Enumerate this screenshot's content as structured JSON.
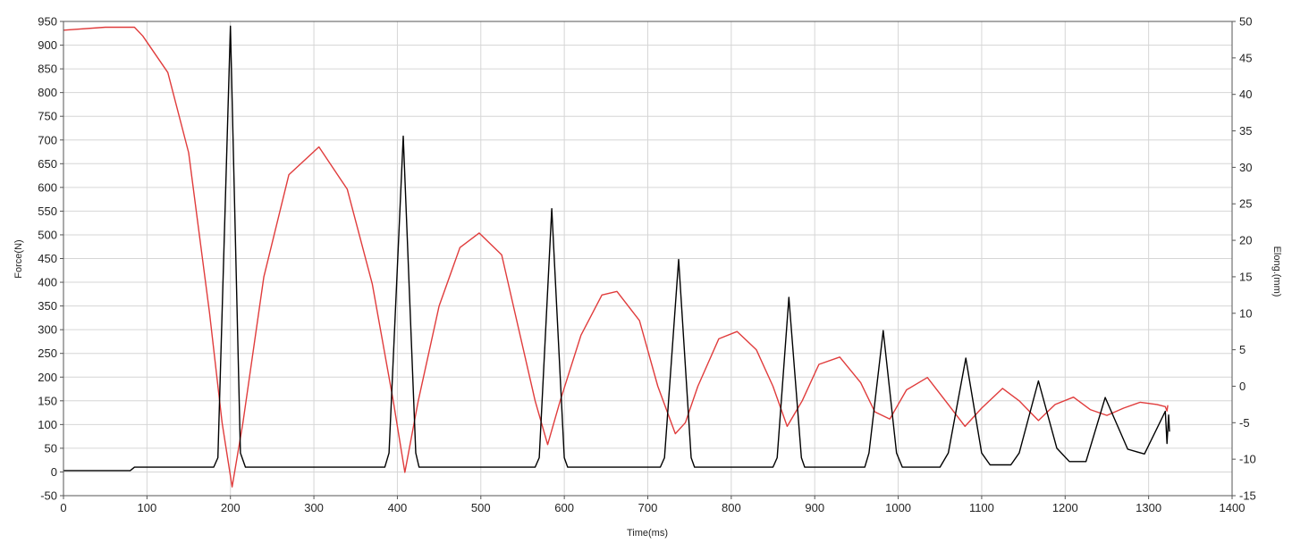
{
  "chart_data": {
    "type": "line",
    "xlabel": "Time(ms)",
    "ylabel": "Force(N)",
    "y2label": "Elong.(mm)",
    "xlim": [
      0,
      1400
    ],
    "ylim": [
      -50,
      950
    ],
    "y2lim": [
      -15,
      50
    ],
    "grid": true,
    "x_ticks": [
      0,
      100,
      200,
      300,
      400,
      500,
      600,
      700,
      800,
      900,
      1000,
      1100,
      1200,
      1300,
      1400
    ],
    "y_ticks": [
      -50,
      0,
      50,
      100,
      150,
      200,
      250,
      300,
      350,
      400,
      450,
      500,
      550,
      600,
      650,
      700,
      750,
      800,
      850,
      900,
      950
    ],
    "y2_ticks": [
      -15,
      -10,
      -5,
      0,
      5,
      10,
      15,
      20,
      25,
      30,
      35,
      40,
      45,
      50
    ],
    "series": [
      {
        "axis": "left",
        "color": "#000000",
        "x": [
          0,
          80,
          85,
          120,
          180,
          185,
          200,
          212,
          218,
          222,
          385,
          390,
          407,
          422,
          426,
          565,
          570,
          585,
          600,
          604,
          715,
          720,
          737,
          752,
          756,
          850,
          855,
          869,
          884,
          888,
          960,
          965,
          982,
          998,
          1005,
          1050,
          1060,
          1081,
          1100,
          1110,
          1135,
          1145,
          1168,
          1190,
          1205,
          1225,
          1248,
          1275,
          1295,
          1320,
          1322,
          1324,
          1325
        ],
        "y": [
          3,
          3,
          10,
          10,
          10,
          30,
          940,
          40,
          10,
          10,
          10,
          40,
          708,
          40,
          10,
          10,
          30,
          555,
          30,
          10,
          10,
          30,
          448,
          30,
          10,
          10,
          30,
          368,
          30,
          10,
          10,
          40,
          298,
          40,
          10,
          10,
          40,
          240,
          40,
          15,
          15,
          40,
          192,
          50,
          22,
          22,
          157,
          48,
          38,
          128,
          60,
          120,
          85
        ]
      },
      {
        "axis": "right",
        "color": "#e03c3c",
        "x": [
          0,
          50,
          85,
          95,
          125,
          150,
          175,
          190,
          202,
          215,
          240,
          270,
          306,
          340,
          370,
          395,
          409,
          425,
          450,
          475,
          498,
          525,
          545,
          565,
          580,
          595,
          620,
          645,
          663,
          690,
          712,
          733,
          745,
          760,
          785,
          807,
          830,
          850,
          867,
          885,
          905,
          930,
          955,
          972,
          990,
          1010,
          1035,
          1060,
          1080,
          1100,
          1125,
          1145,
          1168,
          1188,
          1210,
          1230,
          1250,
          1270,
          1290,
          1310,
          1320,
          1322,
          1323
        ],
        "y": [
          48.8,
          49.2,
          49.2,
          48.0,
          43.0,
          32.0,
          10.0,
          -5.0,
          -13.8,
          -5.0,
          15.0,
          29.0,
          32.8,
          27.0,
          14.0,
          -2.0,
          -11.8,
          -2.0,
          11.0,
          19.0,
          21.0,
          18.0,
          8.0,
          -2.0,
          -8.0,
          -2.0,
          7.0,
          12.5,
          13.0,
          9.0,
          0.0,
          -6.5,
          -5.0,
          0.0,
          6.5,
          7.5,
          5.0,
          0.0,
          -5.5,
          -2.0,
          3.0,
          4.0,
          0.5,
          -3.5,
          -4.5,
          -0.5,
          1.2,
          -2.5,
          -5.5,
          -3.0,
          -0.3,
          -2.0,
          -4.7,
          -2.5,
          -1.5,
          -3.2,
          -4.0,
          -3.0,
          -2.2,
          -2.5,
          -2.8,
          -3.4,
          -2.6
        ]
      }
    ]
  }
}
